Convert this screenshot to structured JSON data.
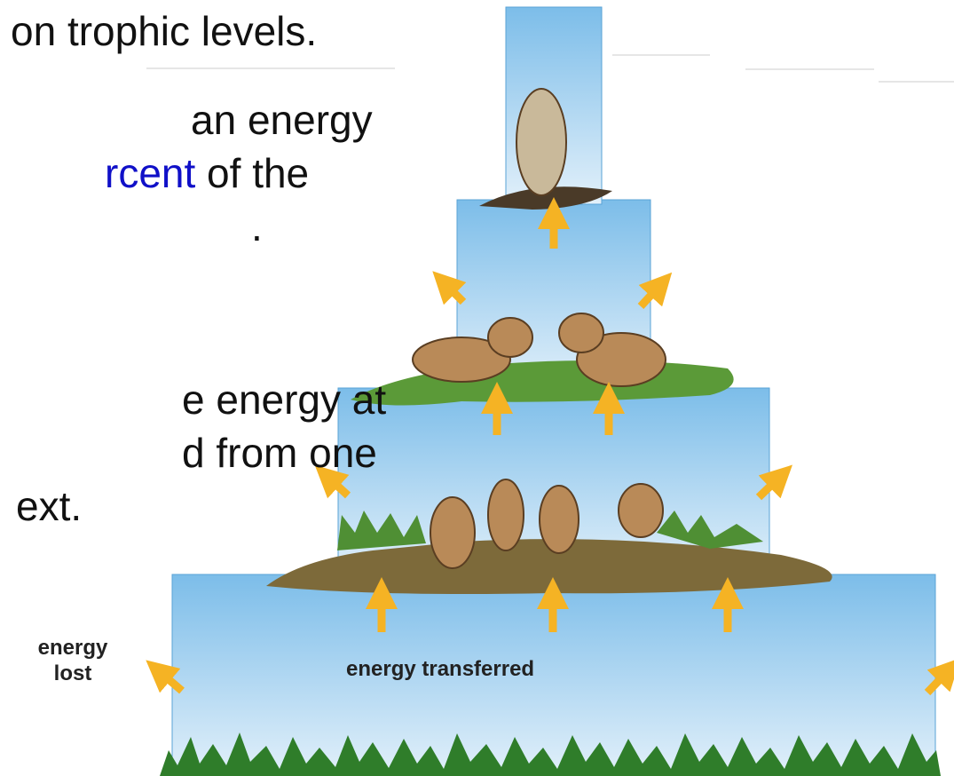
{
  "slide": {
    "text_lines": [
      {
        "text": "on trophic levels."
      },
      {
        "text": "an energy"
      },
      {
        "highlight": "rcent",
        "text": " of the"
      },
      {
        "text": "."
      },
      {
        "text": "e energy at"
      },
      {
        "text": "d from one"
      },
      {
        "text": "ext."
      }
    ]
  },
  "diagram": {
    "energy_lost_label": [
      "energy",
      "lost"
    ],
    "energy_transferred_label": "energy transferred"
  }
}
